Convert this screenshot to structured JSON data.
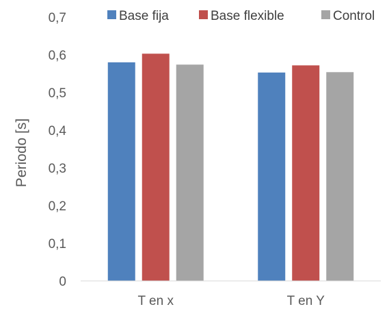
{
  "chart_data": {
    "type": "bar",
    "title": "",
    "xlabel": "",
    "ylabel": "Periodo [s]",
    "categories": [
      "T en x",
      "T en Y"
    ],
    "series": [
      {
        "name": "Base fija",
        "values": [
          0.58,
          0.553
        ],
        "color": "#4f81bd"
      },
      {
        "name": "Base flexible",
        "values": [
          0.603,
          0.572
        ],
        "color": "#c0504d"
      },
      {
        "name": "Control",
        "values": [
          0.574,
          0.554
        ],
        "color": "#a5a5a5"
      }
    ],
    "ylim": [
      0,
      0.7
    ],
    "yticks": [
      0,
      0.1,
      0.2,
      0.3,
      0.4,
      0.5,
      0.6,
      0.7
    ],
    "ytick_labels": [
      "0",
      "0,1",
      "0,2",
      "0,3",
      "0,4",
      "0,5",
      "0,6",
      "0,7"
    ],
    "grid": false,
    "legend_position": "top"
  }
}
